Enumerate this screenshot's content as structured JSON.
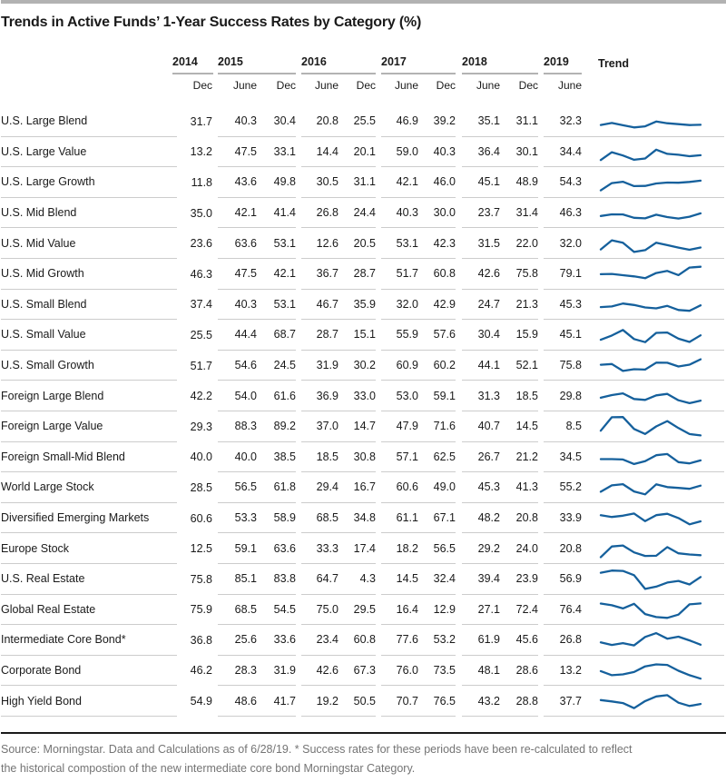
{
  "title": "Trends in Active Funds’ 1-Year Success Rates by Category (%)",
  "header": {
    "year_groups": [
      {
        "label": "2014",
        "months": [
          "Dec"
        ]
      },
      {
        "label": "2015",
        "months": [
          "June",
          "Dec"
        ]
      },
      {
        "label": "2016",
        "months": [
          "June",
          "Dec"
        ]
      },
      {
        "label": "2017",
        "months": [
          "June",
          "Dec"
        ]
      },
      {
        "label": "2018",
        "months": [
          "June",
          "Dec"
        ]
      },
      {
        "label": "2019",
        "months": [
          "June"
        ]
      }
    ],
    "trend_label": "Trend"
  },
  "chart_data": {
    "type": "table",
    "title": "Trends in Active Funds’ 1-Year Success Rates by Category (%)",
    "columns": [
      "2014 Dec",
      "2015 June",
      "2015 Dec",
      "2016 June",
      "2016 Dec",
      "2017 June",
      "2017 Dec",
      "2018 June",
      "2018 Dec",
      "2019 June"
    ],
    "rows": [
      {
        "category": "U.S. Large Blend",
        "values": [
          "31.7",
          "40.3",
          "30.4",
          "20.8",
          "25.5",
          "46.9",
          "39.2",
          "35.1",
          "31.1",
          "32.3"
        ]
      },
      {
        "category": "U.S. Large Value",
        "values": [
          "13.2",
          "47.5",
          "33.1",
          "14.4",
          "20.1",
          "59.0",
          "40.3",
          "36.4",
          "30.1",
          "34.4"
        ]
      },
      {
        "category": "U.S. Large Growth",
        "values": [
          "11.8",
          "43.6",
          "49.8",
          "30.5",
          "31.1",
          "42.1",
          "46.0",
          "45.1",
          "48.9",
          "54.3"
        ]
      },
      {
        "category": "U.S. Mid Blend",
        "values": [
          "35.0",
          "42.1",
          "41.4",
          "26.8",
          "24.4",
          "40.3",
          "30.0",
          "23.7",
          "31.4",
          "46.3"
        ]
      },
      {
        "category": "U.S. Mid Value",
        "values": [
          "23.6",
          "63.6",
          "53.1",
          "12.6",
          "20.5",
          "53.1",
          "42.3",
          "31.5",
          "22.0",
          "32.0"
        ]
      },
      {
        "category": "U.S. Mid Growth",
        "values": [
          "46.3",
          "47.5",
          "42.1",
          "36.7",
          "28.7",
          "51.7",
          "60.8",
          "42.6",
          "75.8",
          "79.1"
        ]
      },
      {
        "category": "U.S. Small Blend",
        "values": [
          "37.4",
          "40.3",
          "53.1",
          "46.7",
          "35.9",
          "32.0",
          "42.9",
          "24.7",
          "21.3",
          "45.3"
        ]
      },
      {
        "category": "U.S. Small Value",
        "values": [
          "25.5",
          "44.4",
          "68.7",
          "28.7",
          "15.1",
          "55.9",
          "57.6",
          "30.4",
          "15.9",
          "45.1"
        ]
      },
      {
        "category": "U.S. Small Growth",
        "values": [
          "51.7",
          "54.6",
          "24.5",
          "31.9",
          "30.2",
          "60.9",
          "60.2",
          "44.1",
          "52.1",
          "75.8"
        ]
      },
      {
        "category": "Foreign Large Blend",
        "values": [
          "42.2",
          "54.0",
          "61.6",
          "36.9",
          "33.0",
          "53.0",
          "59.1",
          "31.3",
          "18.5",
          "29.8"
        ]
      },
      {
        "category": "Foreign Large Value",
        "values": [
          "29.3",
          "88.3",
          "89.2",
          "37.0",
          "14.7",
          "47.9",
          "71.6",
          "40.7",
          "14.5",
          "8.5"
        ]
      },
      {
        "category": "Foreign Small-Mid Blend",
        "values": [
          "40.0",
          "40.0",
          "38.5",
          "18.5",
          "30.8",
          "57.1",
          "62.5",
          "26.7",
          "21.2",
          "34.5"
        ]
      },
      {
        "category": "World Large Stock",
        "values": [
          "28.5",
          "56.5",
          "61.8",
          "29.4",
          "16.7",
          "60.6",
          "49.0",
          "45.3",
          "41.3",
          "55.2"
        ]
      },
      {
        "category": "Diversified Emerging Markets",
        "values": [
          "60.6",
          "53.3",
          "58.9",
          "68.5",
          "34.8",
          "61.1",
          "67.1",
          "48.2",
          "20.8",
          "33.9"
        ]
      },
      {
        "category": "Europe Stock",
        "values": [
          "12.5",
          "59.1",
          "63.6",
          "33.3",
          "17.4",
          "18.2",
          "56.5",
          "29.2",
          "24.0",
          "20.8"
        ]
      },
      {
        "category": "U.S. Real Estate",
        "values": [
          "75.8",
          "85.1",
          "83.8",
          "64.7",
          "4.3",
          "14.5",
          "32.4",
          "39.4",
          "23.9",
          "56.9"
        ]
      },
      {
        "category": "Global Real Estate",
        "values": [
          "75.9",
          "68.5",
          "54.5",
          "75.0",
          "29.5",
          "16.4",
          "12.9",
          "27.1",
          "72.4",
          "76.4"
        ]
      },
      {
        "category": "Intermediate Core Bond*",
        "values": [
          "36.8",
          "25.6",
          "33.6",
          "23.4",
          "60.8",
          "77.6",
          "53.2",
          "61.9",
          "45.6",
          "26.8"
        ]
      },
      {
        "category": "Corporate Bond",
        "values": [
          "46.2",
          "28.3",
          "31.9",
          "42.6",
          "67.3",
          "76.0",
          "73.5",
          "48.1",
          "28.6",
          "13.2"
        ]
      },
      {
        "category": "High Yield Bond",
        "values": [
          "54.9",
          "48.6",
          "41.7",
          "19.2",
          "50.5",
          "70.7",
          "76.5",
          "43.2",
          "28.8",
          "37.7"
        ]
      }
    ],
    "sparkline": {
      "type": "line",
      "y_range": [
        0,
        100
      ],
      "color": "#15609c"
    }
  },
  "footer": {
    "line1": "Source: Morningstar. Data and Calculations as of 6/28/19. * Success rates for these periods have been re-calculated to reflect",
    "line2": "the historical compostion of the new intermediate core bond Morningstar Category."
  },
  "colors": {
    "accent_blue": "#15609c",
    "rule_dark": "#1a1a1a",
    "separator": "#cccccc",
    "year_underline": "#b3b3b3",
    "top_bar": "#b2b2b2",
    "footer_text": "#747474"
  }
}
